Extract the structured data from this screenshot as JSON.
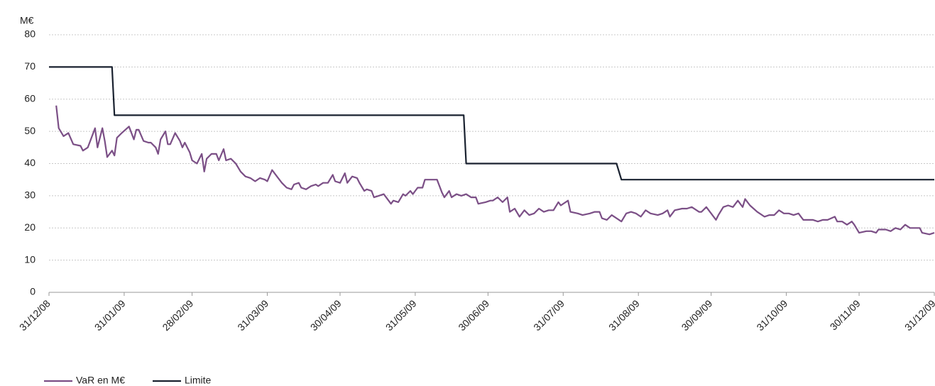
{
  "chart_data": {
    "type": "line",
    "y_label": "M€",
    "ylim": [
      0,
      80
    ],
    "yticks": [
      0,
      10,
      20,
      30,
      40,
      50,
      60,
      70,
      80
    ],
    "xlim": [
      "2008-12-31",
      "2009-12-31"
    ],
    "xticks": [
      {
        "value": "2008-12-31",
        "label": "31/12/08"
      },
      {
        "value": "2009-01-31",
        "label": "31/01/09"
      },
      {
        "value": "2009-02-28",
        "label": "28/02/09"
      },
      {
        "value": "2009-03-31",
        "label": "31/03/09"
      },
      {
        "value": "2009-04-30",
        "label": "30/04/09"
      },
      {
        "value": "2009-05-31",
        "label": "31/05/09"
      },
      {
        "value": "2009-06-30",
        "label": "30/06/09"
      },
      {
        "value": "2009-07-31",
        "label": "31/07/09"
      },
      {
        "value": "2009-08-31",
        "label": "31/08/09"
      },
      {
        "value": "2009-09-30",
        "label": "30/09/09"
      },
      {
        "value": "2009-10-31",
        "label": "31/10/09"
      },
      {
        "value": "2009-11-30",
        "label": "30/11/09"
      },
      {
        "value": "2009-12-31",
        "label": "31/12/09"
      }
    ],
    "grid": true,
    "legend": "bottom-left",
    "series": [
      {
        "name": "VaR en M€",
        "color": "#7b4f86",
        "x": [
          "2009-01-03",
          "2009-01-04",
          "2009-01-06",
          "2009-01-08",
          "2009-01-10",
          "2009-01-13",
          "2009-01-14",
          "2009-01-16",
          "2009-01-19",
          "2009-01-20",
          "2009-01-22",
          "2009-01-23",
          "2009-01-24",
          "2009-01-26",
          "2009-01-27",
          "2009-01-28",
          "2009-01-30",
          "2009-02-02",
          "2009-02-04",
          "2009-02-05",
          "2009-02-06",
          "2009-02-08",
          "2009-02-10",
          "2009-02-11",
          "2009-02-13",
          "2009-02-14",
          "2009-02-15",
          "2009-02-17",
          "2009-02-18",
          "2009-02-19",
          "2009-02-21",
          "2009-02-23",
          "2009-02-24",
          "2009-02-25",
          "2009-02-27",
          "2009-02-28",
          "2009-03-02",
          "2009-03-04",
          "2009-03-05",
          "2009-03-06",
          "2009-03-08",
          "2009-03-10",
          "2009-03-11",
          "2009-03-13",
          "2009-03-14",
          "2009-03-16",
          "2009-03-18",
          "2009-03-20",
          "2009-03-22",
          "2009-03-24",
          "2009-03-26",
          "2009-03-28",
          "2009-03-30",
          "2009-03-31",
          "2009-04-02",
          "2009-04-04",
          "2009-04-06",
          "2009-04-08",
          "2009-04-10",
          "2009-04-11",
          "2009-04-13",
          "2009-04-14",
          "2009-04-16",
          "2009-04-18",
          "2009-04-20",
          "2009-04-21",
          "2009-04-23",
          "2009-04-25",
          "2009-04-27",
          "2009-04-28",
          "2009-04-30",
          "2009-05-02",
          "2009-05-03",
          "2009-05-05",
          "2009-05-07",
          "2009-05-08",
          "2009-05-10",
          "2009-05-11",
          "2009-05-13",
          "2009-05-14",
          "2009-05-16",
          "2009-05-18",
          "2009-05-19",
          "2009-05-21",
          "2009-05-22",
          "2009-05-24",
          "2009-05-26",
          "2009-05-27",
          "2009-05-29",
          "2009-05-30",
          "2009-06-01",
          "2009-06-03",
          "2009-06-04",
          "2009-06-06",
          "2009-06-09",
          "2009-06-11",
          "2009-06-12",
          "2009-06-14",
          "2009-06-15",
          "2009-06-17",
          "2009-06-19",
          "2009-06-21",
          "2009-06-23",
          "2009-06-25",
          "2009-06-26",
          "2009-06-29",
          "2009-07-01",
          "2009-07-02",
          "2009-07-04",
          "2009-07-06",
          "2009-07-08",
          "2009-07-09",
          "2009-07-11",
          "2009-07-13",
          "2009-07-15",
          "2009-07-17",
          "2009-07-19",
          "2009-07-21",
          "2009-07-23",
          "2009-07-25",
          "2009-07-27",
          "2009-07-29",
          "2009-07-30",
          "2009-08-02",
          "2009-08-03",
          "2009-08-06",
          "2009-08-08",
          "2009-08-11",
          "2009-08-13",
          "2009-08-15",
          "2009-08-16",
          "2009-08-18",
          "2009-08-20",
          "2009-08-22",
          "2009-08-24",
          "2009-08-26",
          "2009-08-28",
          "2009-08-30",
          "2009-09-01",
          "2009-09-03",
          "2009-09-05",
          "2009-09-08",
          "2009-09-10",
          "2009-09-12",
          "2009-09-13",
          "2009-09-15",
          "2009-09-18",
          "2009-09-20",
          "2009-09-22",
          "2009-09-25",
          "2009-09-26",
          "2009-09-28",
          "2009-09-30",
          "2009-10-02",
          "2009-10-03",
          "2009-10-05",
          "2009-10-07",
          "2009-10-09",
          "2009-10-11",
          "2009-10-13",
          "2009-10-14",
          "2009-10-16",
          "2009-10-19",
          "2009-10-20",
          "2009-10-22",
          "2009-10-24",
          "2009-10-26",
          "2009-10-28",
          "2009-10-30",
          "2009-11-01",
          "2009-11-03",
          "2009-11-05",
          "2009-11-07",
          "2009-11-09",
          "2009-11-11",
          "2009-11-13",
          "2009-11-15",
          "2009-11-17",
          "2009-11-20",
          "2009-11-21",
          "2009-11-23",
          "2009-11-25",
          "2009-11-27",
          "2009-11-28",
          "2009-11-30",
          "2009-12-03",
          "2009-12-05",
          "2009-12-07",
          "2009-12-08",
          "2009-12-11",
          "2009-12-13",
          "2009-12-15",
          "2009-12-17",
          "2009-12-19",
          "2009-12-21",
          "2009-12-23",
          "2009-12-25",
          "2009-12-26",
          "2009-12-29",
          "2009-12-31"
        ],
        "values": [
          58,
          51,
          48.5,
          49.5,
          46,
          45.5,
          44,
          45,
          51,
          45,
          51,
          47,
          42,
          44,
          42.5,
          48,
          49.5,
          51.5,
          47.5,
          50.5,
          50.5,
          47,
          46.5,
          46.5,
          45,
          43,
          47.5,
          50,
          46,
          46,
          49.5,
          47,
          45,
          46.5,
          43.5,
          41,
          40,
          43,
          37.5,
          41.5,
          43,
          43,
          41,
          44.5,
          41,
          41.5,
          40,
          37.5,
          36,
          35.5,
          34.5,
          35.5,
          35,
          34.5,
          38,
          36,
          34,
          32.5,
          32,
          33.5,
          34,
          32.5,
          32,
          33,
          33.5,
          33,
          34,
          34,
          36.5,
          34.5,
          34,
          37,
          34,
          36,
          35.5,
          34,
          31.5,
          32,
          31.5,
          29.5,
          30,
          30.5,
          29.5,
          27.5,
          28.5,
          28,
          30.5,
          30,
          31.5,
          30.5,
          32.5,
          32.5,
          35,
          35,
          35,
          31,
          29.5,
          31.5,
          29.5,
          30.5,
          30,
          30.5,
          29.5,
          29.5,
          27.5,
          28,
          28.5,
          28.5,
          29.5,
          28,
          29.5,
          25,
          26,
          23.5,
          25.5,
          24,
          24.5,
          26,
          25,
          25.5,
          25.5,
          28,
          27,
          28.5,
          25,
          24.5,
          24,
          24.5,
          25,
          25,
          23,
          22.5,
          24,
          23,
          22,
          24.5,
          25,
          24.5,
          23.5,
          25.5,
          24.5,
          24,
          24.5,
          25.5,
          23.5,
          25.5,
          26,
          26,
          26.5,
          25,
          25,
          26.5,
          24.5,
          22.5,
          24,
          26.5,
          27,
          26.5,
          28.5,
          26.5,
          29,
          27,
          25,
          24.5,
          23.5,
          24,
          24,
          25.5,
          24.5,
          24.5,
          24,
          24.5,
          22.5,
          22.5,
          22.5,
          22,
          22.5,
          22.5,
          23.5,
          22,
          22,
          21,
          22,
          21,
          18.5,
          19,
          19,
          18.5,
          19.5,
          19.5,
          19,
          20,
          19.5,
          21,
          20,
          20,
          20,
          18.5,
          18,
          18.5
        ]
      },
      {
        "name": "Limite",
        "color": "#1a2230",
        "x": [
          "2008-12-31",
          "2009-01-26",
          "2009-01-27",
          "2009-06-20",
          "2009-06-21",
          "2009-08-22",
          "2009-08-24",
          "2009-12-31"
        ],
        "values": [
          70,
          70,
          55,
          55,
          40,
          40,
          35,
          35
        ]
      }
    ]
  }
}
